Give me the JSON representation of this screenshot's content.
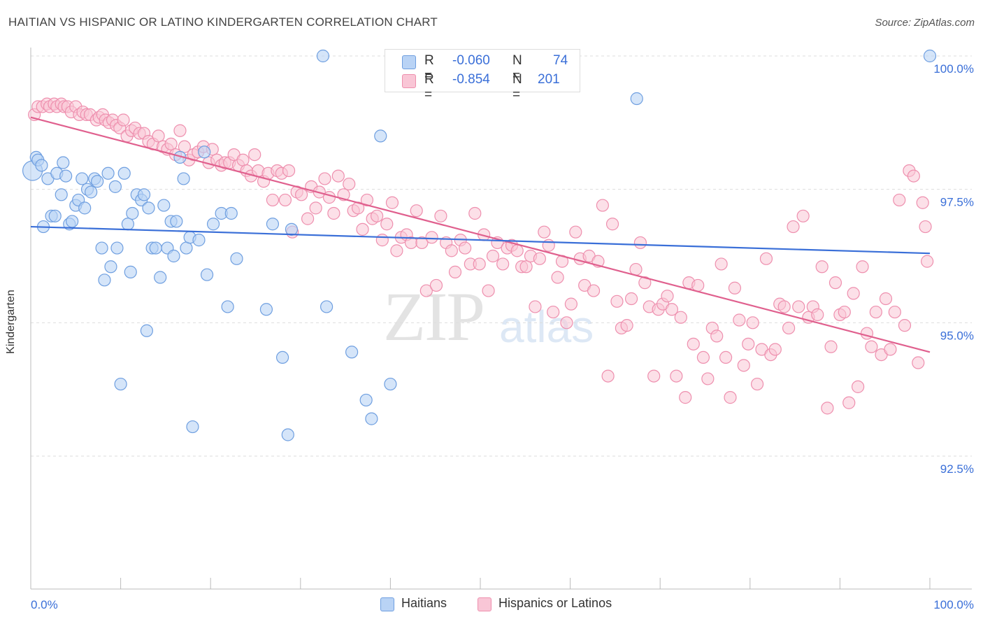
{
  "title": "HAITIAN VS HISPANIC OR LATINO KINDERGARTEN CORRELATION CHART",
  "source": "Source: ZipAtlas.com",
  "watermark": {
    "zip": "ZIP",
    "atlas": "atlas"
  },
  "colors": {
    "blue": "#3a6fd8",
    "blue_fill": "#b9d3f5",
    "blue_stroke": "#6f9fe0",
    "pink": "#e0608e",
    "pink_fill": "#f9c6d6",
    "pink_stroke": "#ee8fae",
    "grid": "#dddddd",
    "axis": "#bbbbbb"
  },
  "legend": {
    "rows": [
      {
        "r_label": "R =",
        "r_value": "-0.060",
        "n_label": "N =",
        "n_value": "74"
      },
      {
        "r_label": "R =",
        "r_value": "-0.854",
        "n_label": "N =",
        "n_value": "201"
      }
    ]
  },
  "bottom_legend": {
    "haitians": "Haitians",
    "hispanics": "Hispanics or Latinos"
  },
  "chart_data": {
    "type": "scatter",
    "title": "HAITIAN VS HISPANIC OR LATINO KINDERGARTEN CORRELATION CHART",
    "xlabel": "",
    "ylabel": "Kindergarten",
    "xlim": [
      0,
      100
    ],
    "ylim": [
      90.0,
      100.5
    ],
    "x_tick_labels": {
      "left": "0.0%",
      "right": "100.0%"
    },
    "y_ticks": [
      100.0,
      97.5,
      95.0,
      92.5
    ],
    "y_tick_labels": [
      "100.0%",
      "97.5%",
      "95.0%",
      "92.5%"
    ],
    "series": [
      {
        "name": "Haitians",
        "trend": {
          "x": [
            0,
            100
          ],
          "y": [
            96.8,
            96.3
          ]
        },
        "points": [
          [
            0.2,
            97.85
          ],
          [
            0.6,
            98.1
          ],
          [
            0.8,
            98.05
          ],
          [
            1.2,
            97.95
          ],
          [
            1.4,
            96.8
          ],
          [
            1.9,
            97.7
          ],
          [
            2.3,
            97.0
          ],
          [
            2.7,
            97.0
          ],
          [
            2.9,
            97.8
          ],
          [
            3.4,
            97.4
          ],
          [
            3.6,
            98.0
          ],
          [
            3.9,
            97.75
          ],
          [
            4.3,
            96.85
          ],
          [
            4.6,
            96.9
          ],
          [
            5.0,
            97.2
          ],
          [
            5.3,
            97.3
          ],
          [
            5.7,
            97.7
          ],
          [
            6.0,
            97.15
          ],
          [
            6.3,
            97.5
          ],
          [
            6.7,
            97.45
          ],
          [
            7.1,
            97.7
          ],
          [
            7.4,
            97.65
          ],
          [
            7.9,
            96.4
          ],
          [
            8.2,
            95.8
          ],
          [
            8.6,
            97.8
          ],
          [
            8.9,
            96.05
          ],
          [
            9.4,
            97.55
          ],
          [
            9.6,
            96.4
          ],
          [
            10.0,
            93.85
          ],
          [
            10.4,
            97.8
          ],
          [
            10.8,
            96.85
          ],
          [
            11.1,
            95.95
          ],
          [
            11.3,
            97.05
          ],
          [
            11.8,
            97.4
          ],
          [
            12.3,
            97.3
          ],
          [
            12.6,
            97.4
          ],
          [
            12.9,
            94.85
          ],
          [
            13.1,
            97.15
          ],
          [
            13.5,
            96.4
          ],
          [
            13.9,
            96.4
          ],
          [
            14.4,
            95.85
          ],
          [
            14.8,
            97.2
          ],
          [
            15.2,
            96.4
          ],
          [
            15.6,
            96.9
          ],
          [
            15.9,
            96.25
          ],
          [
            16.2,
            96.9
          ],
          [
            16.6,
            98.1
          ],
          [
            17.0,
            97.7
          ],
          [
            17.3,
            96.4
          ],
          [
            17.7,
            96.6
          ],
          [
            18.0,
            93.05
          ],
          [
            18.7,
            96.55
          ],
          [
            19.3,
            98.2
          ],
          [
            19.6,
            95.9
          ],
          [
            20.3,
            96.85
          ],
          [
            21.2,
            97.05
          ],
          [
            21.9,
            95.3
          ],
          [
            22.3,
            97.05
          ],
          [
            22.9,
            96.2
          ],
          [
            26.2,
            95.25
          ],
          [
            26.9,
            96.85
          ],
          [
            28.0,
            94.35
          ],
          [
            28.6,
            92.9
          ],
          [
            29.0,
            96.75
          ],
          [
            32.5,
            100.0
          ],
          [
            32.9,
            95.3
          ],
          [
            35.7,
            94.45
          ],
          [
            37.3,
            93.55
          ],
          [
            37.9,
            93.2
          ],
          [
            38.9,
            98.5
          ],
          [
            40.0,
            93.85
          ],
          [
            67.4,
            99.2
          ],
          [
            100.0,
            100.0
          ]
        ]
      },
      {
        "name": "Hispanics or Latinos",
        "trend": {
          "x": [
            0,
            100
          ],
          "y": [
            98.85,
            94.45
          ]
        },
        "points": [
          [
            0.4,
            98.9
          ],
          [
            0.8,
            99.05
          ],
          [
            1.3,
            99.05
          ],
          [
            1.8,
            99.1
          ],
          [
            2.1,
            99.05
          ],
          [
            2.6,
            99.1
          ],
          [
            2.9,
            99.05
          ],
          [
            3.4,
            99.1
          ],
          [
            3.7,
            99.05
          ],
          [
            4.1,
            99.05
          ],
          [
            4.5,
            98.95
          ],
          [
            5.0,
            99.05
          ],
          [
            5.4,
            98.9
          ],
          [
            5.8,
            98.95
          ],
          [
            6.2,
            98.9
          ],
          [
            6.6,
            98.9
          ],
          [
            7.3,
            98.8
          ],
          [
            7.6,
            98.85
          ],
          [
            8.0,
            98.9
          ],
          [
            8.3,
            98.8
          ],
          [
            8.7,
            98.75
          ],
          [
            9.1,
            98.8
          ],
          [
            9.5,
            98.7
          ],
          [
            9.9,
            98.65
          ],
          [
            10.3,
            98.8
          ],
          [
            10.7,
            98.5
          ],
          [
            11.2,
            98.6
          ],
          [
            11.6,
            98.65
          ],
          [
            12.1,
            98.55
          ],
          [
            12.6,
            98.55
          ],
          [
            13.1,
            98.4
          ],
          [
            13.6,
            98.35
          ],
          [
            14.2,
            98.5
          ],
          [
            14.7,
            98.3
          ],
          [
            15.2,
            98.25
          ],
          [
            15.6,
            98.35
          ],
          [
            16.1,
            98.15
          ],
          [
            16.6,
            98.6
          ],
          [
            17.1,
            98.3
          ],
          [
            17.6,
            98.05
          ],
          [
            18.1,
            98.15
          ],
          [
            18.6,
            98.2
          ],
          [
            19.2,
            98.3
          ],
          [
            19.8,
            98.0
          ],
          [
            20.2,
            98.25
          ],
          [
            20.7,
            98.05
          ],
          [
            21.2,
            97.95
          ],
          [
            21.6,
            98.0
          ],
          [
            22.1,
            98.0
          ],
          [
            22.6,
            98.15
          ],
          [
            23.1,
            97.95
          ],
          [
            23.6,
            98.05
          ],
          [
            24.0,
            97.85
          ],
          [
            24.5,
            97.75
          ],
          [
            24.9,
            98.15
          ],
          [
            25.3,
            97.85
          ],
          [
            25.9,
            97.65
          ],
          [
            26.4,
            97.8
          ],
          [
            26.9,
            97.3
          ],
          [
            27.4,
            97.85
          ],
          [
            27.9,
            97.8
          ],
          [
            28.3,
            97.3
          ],
          [
            28.7,
            97.85
          ],
          [
            29.1,
            96.7
          ],
          [
            29.6,
            97.45
          ],
          [
            30.1,
            97.4
          ],
          [
            30.8,
            96.95
          ],
          [
            31.2,
            97.55
          ],
          [
            31.7,
            97.15
          ],
          [
            32.1,
            97.45
          ],
          [
            32.7,
            97.7
          ],
          [
            33.2,
            97.35
          ],
          [
            33.7,
            97.05
          ],
          [
            34.2,
            97.75
          ],
          [
            34.8,
            97.4
          ],
          [
            35.4,
            97.6
          ],
          [
            35.9,
            97.1
          ],
          [
            36.4,
            97.15
          ],
          [
            36.9,
            96.75
          ],
          [
            37.4,
            97.3
          ],
          [
            38.0,
            96.95
          ],
          [
            38.5,
            97.0
          ],
          [
            39.1,
            96.55
          ],
          [
            39.6,
            96.85
          ],
          [
            40.2,
            97.25
          ],
          [
            40.7,
            96.35
          ],
          [
            41.2,
            96.6
          ],
          [
            41.8,
            96.65
          ],
          [
            42.3,
            96.5
          ],
          [
            42.9,
            97.1
          ],
          [
            43.5,
            96.5
          ],
          [
            44.0,
            95.6
          ],
          [
            44.6,
            96.6
          ],
          [
            45.1,
            95.7
          ],
          [
            45.6,
            97.0
          ],
          [
            46.2,
            96.5
          ],
          [
            46.8,
            96.35
          ],
          [
            47.2,
            95.95
          ],
          [
            47.8,
            96.55
          ],
          [
            48.3,
            96.4
          ],
          [
            48.9,
            96.1
          ],
          [
            49.4,
            97.05
          ],
          [
            49.9,
            96.1
          ],
          [
            50.4,
            96.65
          ],
          [
            50.9,
            95.6
          ],
          [
            51.4,
            96.25
          ],
          [
            51.9,
            96.5
          ],
          [
            52.5,
            96.1
          ],
          [
            53.0,
            96.4
          ],
          [
            53.5,
            96.45
          ],
          [
            54.1,
            96.35
          ],
          [
            54.6,
            96.05
          ],
          [
            55.1,
            96.05
          ],
          [
            55.6,
            96.25
          ],
          [
            56.1,
            95.3
          ],
          [
            56.6,
            96.2
          ],
          [
            57.1,
            96.7
          ],
          [
            57.6,
            96.45
          ],
          [
            58.1,
            95.2
          ],
          [
            58.6,
            95.85
          ],
          [
            59.1,
            96.15
          ],
          [
            59.6,
            95.0
          ],
          [
            60.1,
            95.35
          ],
          [
            60.6,
            96.7
          ],
          [
            61.1,
            96.2
          ],
          [
            61.6,
            95.7
          ],
          [
            62.1,
            96.25
          ],
          [
            62.6,
            95.6
          ],
          [
            63.1,
            96.15
          ],
          [
            63.6,
            97.2
          ],
          [
            64.2,
            94.0
          ],
          [
            64.7,
            96.85
          ],
          [
            65.2,
            95.4
          ],
          [
            65.7,
            94.9
          ],
          [
            66.3,
            94.95
          ],
          [
            66.8,
            95.45
          ],
          [
            67.3,
            96.0
          ],
          [
            67.8,
            96.5
          ],
          [
            68.3,
            95.75
          ],
          [
            68.8,
            95.3
          ],
          [
            69.3,
            94.0
          ],
          [
            69.8,
            95.25
          ],
          [
            70.3,
            95.35
          ],
          [
            70.8,
            95.5
          ],
          [
            71.3,
            95.25
          ],
          [
            71.8,
            94.0
          ],
          [
            72.3,
            95.1
          ],
          [
            72.8,
            93.6
          ],
          [
            73.2,
            95.75
          ],
          [
            73.7,
            94.6
          ],
          [
            74.2,
            95.7
          ],
          [
            74.8,
            94.35
          ],
          [
            75.3,
            93.95
          ],
          [
            75.8,
            94.9
          ],
          [
            76.3,
            94.75
          ],
          [
            76.8,
            96.1
          ],
          [
            77.3,
            94.35
          ],
          [
            77.8,
            93.6
          ],
          [
            78.3,
            95.65
          ],
          [
            78.8,
            95.05
          ],
          [
            79.3,
            94.2
          ],
          [
            79.8,
            94.6
          ],
          [
            80.3,
            95.0
          ],
          [
            80.8,
            93.85
          ],
          [
            81.3,
            94.5
          ],
          [
            81.8,
            96.2
          ],
          [
            82.3,
            94.4
          ],
          [
            82.8,
            94.5
          ],
          [
            83.3,
            95.35
          ],
          [
            83.8,
            95.3
          ],
          [
            84.3,
            94.9
          ],
          [
            84.8,
            96.8
          ],
          [
            85.4,
            95.3
          ],
          [
            85.9,
            97.0
          ],
          [
            86.5,
            95.1
          ],
          [
            87.0,
            95.3
          ],
          [
            87.5,
            95.15
          ],
          [
            88.0,
            96.05
          ],
          [
            88.6,
            93.4
          ],
          [
            89.0,
            94.55
          ],
          [
            89.5,
            95.75
          ],
          [
            90.0,
            95.15
          ],
          [
            90.5,
            95.2
          ],
          [
            91.0,
            93.5
          ],
          [
            91.5,
            95.55
          ],
          [
            92.0,
            93.8
          ],
          [
            92.5,
            96.05
          ],
          [
            93.0,
            94.8
          ],
          [
            93.5,
            94.55
          ],
          [
            94.0,
            95.2
          ],
          [
            94.6,
            94.4
          ],
          [
            95.1,
            95.45
          ],
          [
            95.6,
            94.5
          ],
          [
            96.1,
            95.2
          ],
          [
            96.6,
            97.3
          ],
          [
            97.2,
            94.95
          ],
          [
            97.7,
            97.85
          ],
          [
            98.2,
            97.75
          ],
          [
            98.7,
            94.25
          ],
          [
            99.2,
            97.25
          ],
          [
            99.7,
            96.15
          ],
          [
            99.5,
            96.8
          ]
        ]
      }
    ]
  }
}
